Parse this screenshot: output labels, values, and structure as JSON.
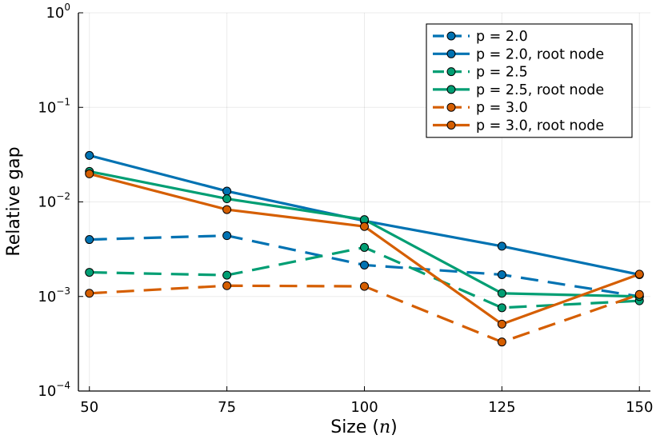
{
  "chart_data": {
    "type": "line",
    "title": "",
    "xlabel_text": "Size (",
    "xlabel_var": "n",
    "xlabel_close": ")",
    "ylabel": "Relative gap",
    "x": [
      50,
      75,
      100,
      125,
      150
    ],
    "xticks": [
      "50",
      "75",
      "100",
      "125",
      "150"
    ],
    "xlim": [
      48,
      152
    ],
    "yscale": "log",
    "ylim": [
      0.0001,
      1
    ],
    "yticks": [
      {
        "value": 1,
        "base": "10",
        "exp": "0"
      },
      {
        "value": 0.1,
        "base": "10",
        "exp": "−1"
      },
      {
        "value": 0.01,
        "base": "10",
        "exp": "−2"
      },
      {
        "value": 0.001,
        "base": "10",
        "exp": "−3"
      },
      {
        "value": 0.0001,
        "base": "10",
        "exp": "−4"
      }
    ],
    "grid": true,
    "legend_position": "top-right",
    "series": [
      {
        "name": "p = 2.0",
        "color": "#0072b2",
        "dash": true,
        "values": [
          0.004,
          0.0044,
          0.00215,
          0.0017,
          0.001
        ]
      },
      {
        "name": "p = 2.0, root node",
        "color": "#0072b2",
        "dash": false,
        "values": [
          0.031,
          0.013,
          0.0063,
          0.0034,
          0.0017
        ]
      },
      {
        "name": "p = 2.5",
        "color": "#009e73",
        "dash": true,
        "values": [
          0.0018,
          0.00168,
          0.0033,
          0.00076,
          0.0009
        ]
      },
      {
        "name": "p = 2.5, root node",
        "color": "#009e73",
        "dash": false,
        "values": [
          0.021,
          0.0108,
          0.0065,
          0.00108,
          0.001
        ]
      },
      {
        "name": "p = 3.0",
        "color": "#d55e00",
        "dash": true,
        "values": [
          0.00108,
          0.0013,
          0.00128,
          0.00033,
          0.00105
        ]
      },
      {
        "name": "p = 3.0, root node",
        "color": "#d55e00",
        "dash": false,
        "values": [
          0.0198,
          0.0083,
          0.0055,
          0.00051,
          0.00172
        ]
      }
    ]
  }
}
